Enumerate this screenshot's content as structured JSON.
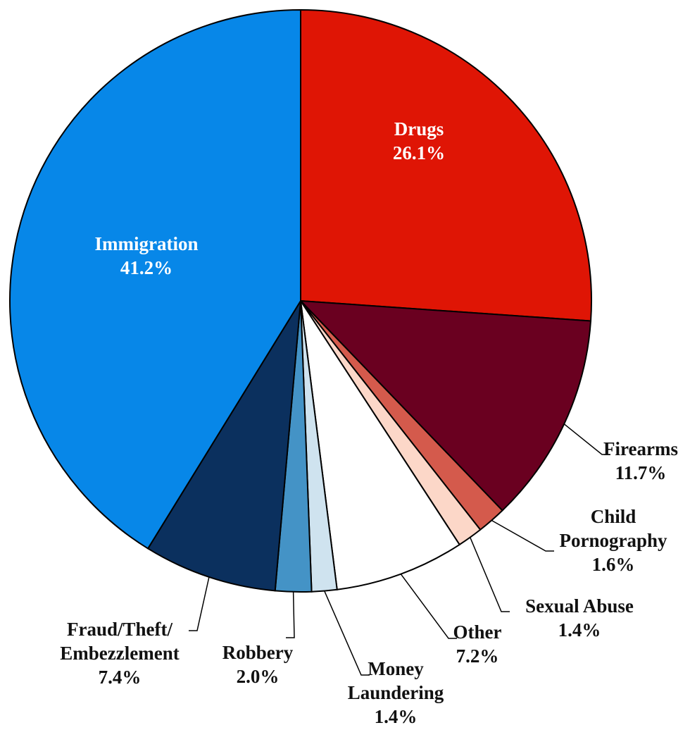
{
  "chart_data": {
    "type": "pie",
    "title": "",
    "start_angle_deg": 0,
    "direction": "clockwise",
    "slices": [
      {
        "label": "Drugs",
        "value": 26.1,
        "value_label": "26.1%",
        "color": "#df1505",
        "text_color": "#ffffff"
      },
      {
        "label": "Firearms",
        "value": 11.7,
        "value_label": "11.7%",
        "color": "#6a0020",
        "text_color": "#111111"
      },
      {
        "label": "Child Pornography",
        "label_lines": [
          "Child",
          "Pornography"
        ],
        "value": 1.6,
        "value_label": "1.6%",
        "color": "#d45a4c",
        "text_color": "#111111"
      },
      {
        "label": "Sexual Abuse",
        "value": 1.4,
        "value_label": "1.4%",
        "color": "#fcd7c8",
        "text_color": "#111111"
      },
      {
        "label": "Other",
        "value": 7.2,
        "value_label": "7.2%",
        "color": "#ffffff",
        "text_color": "#111111"
      },
      {
        "label": "Money Laundering",
        "label_lines": [
          "Money",
          "Laundering"
        ],
        "value": 1.4,
        "value_label": "1.4%",
        "color": "#cfe3ef",
        "text_color": "#111111"
      },
      {
        "label": "Robbery",
        "value": 2.0,
        "value_label": "2.0%",
        "color": "#4493c6",
        "text_color": "#111111"
      },
      {
        "label": "Fraud/Theft/Embezzlement",
        "label_lines": [
          "Fraud/Theft/",
          "Embezzlement"
        ],
        "value": 7.4,
        "value_label": "7.4%",
        "color": "#0b305e",
        "text_color": "#111111"
      },
      {
        "label": "Immigration",
        "value": 41.2,
        "value_label": "41.2%",
        "color": "#0787e8",
        "text_color": "#ffffff"
      }
    ]
  }
}
